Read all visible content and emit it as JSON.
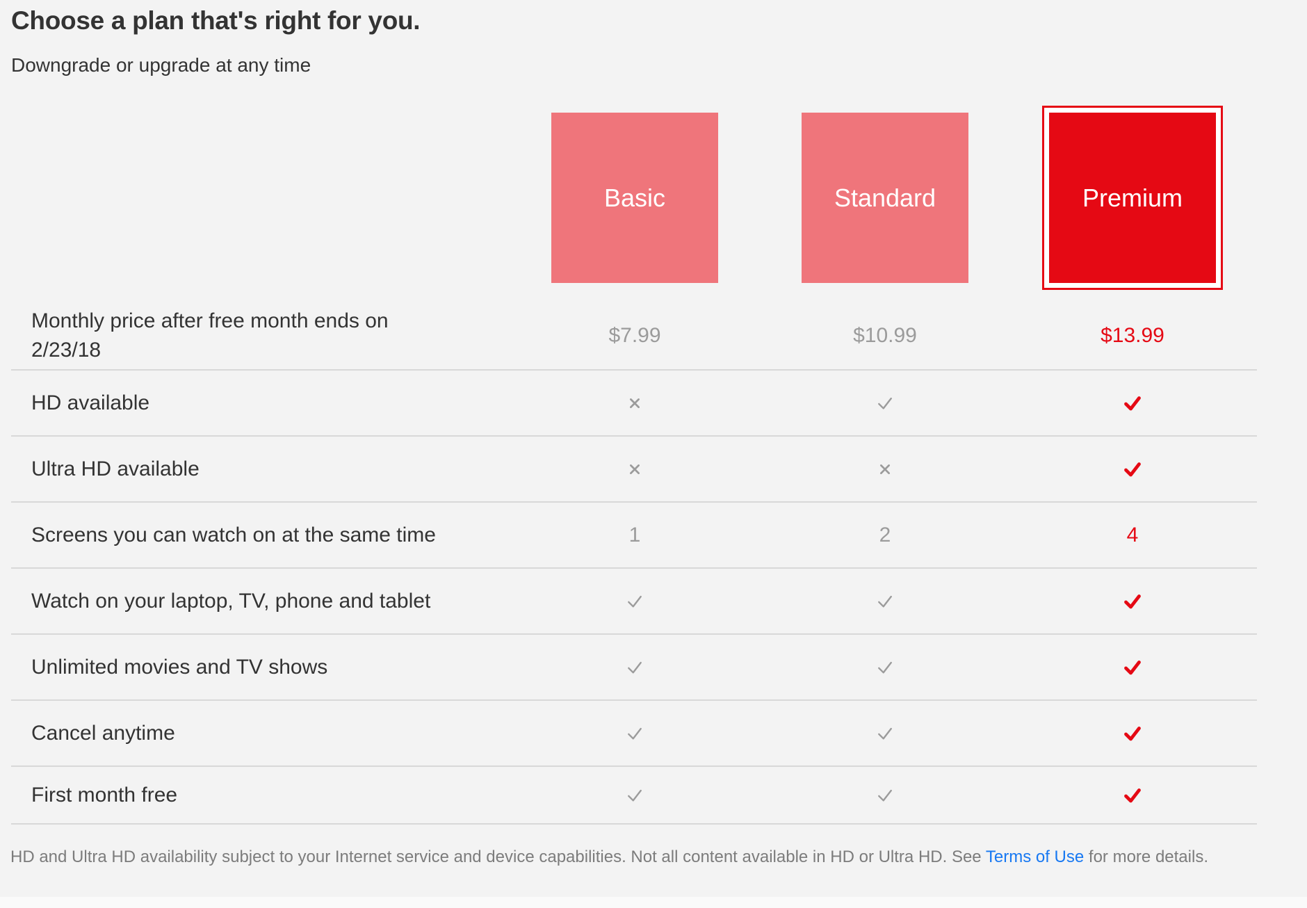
{
  "header": {
    "title": "Choose a plan that's right for you.",
    "subtitle": "Downgrade or upgrade at any time"
  },
  "plans": [
    {
      "name": "Basic",
      "selected": false
    },
    {
      "name": "Standard",
      "selected": false
    },
    {
      "name": "Premium",
      "selected": true
    }
  ],
  "table": {
    "rows": [
      {
        "label_lines": [
          "Monthly price after free month ends on",
          "2/23/18"
        ],
        "cells": [
          {
            "kind": "text",
            "value": "$7.99",
            "accent": false
          },
          {
            "kind": "text",
            "value": "$10.99",
            "accent": false
          },
          {
            "kind": "text",
            "value": "$13.99",
            "accent": true
          }
        ]
      },
      {
        "label_lines": [
          "HD available"
        ],
        "cells": [
          {
            "kind": "cross",
            "accent": false
          },
          {
            "kind": "check",
            "accent": false
          },
          {
            "kind": "check",
            "accent": true
          }
        ]
      },
      {
        "label_lines": [
          "Ultra HD available"
        ],
        "cells": [
          {
            "kind": "cross",
            "accent": false
          },
          {
            "kind": "cross",
            "accent": false
          },
          {
            "kind": "check",
            "accent": true
          }
        ]
      },
      {
        "label_lines": [
          "Screens you can watch on at the same time"
        ],
        "cells": [
          {
            "kind": "text",
            "value": "1",
            "accent": false
          },
          {
            "kind": "text",
            "value": "2",
            "accent": false
          },
          {
            "kind": "text",
            "value": "4",
            "accent": true
          }
        ]
      },
      {
        "label_lines": [
          "Watch on your laptop, TV, phone and tablet"
        ],
        "cells": [
          {
            "kind": "check",
            "accent": false
          },
          {
            "kind": "check",
            "accent": false
          },
          {
            "kind": "check",
            "accent": true
          }
        ]
      },
      {
        "label_lines": [
          "Unlimited movies and TV shows"
        ],
        "cells": [
          {
            "kind": "check",
            "accent": false
          },
          {
            "kind": "check",
            "accent": false
          },
          {
            "kind": "check",
            "accent": true
          }
        ]
      },
      {
        "label_lines": [
          "Cancel anytime"
        ],
        "cells": [
          {
            "kind": "check",
            "accent": false
          },
          {
            "kind": "check",
            "accent": false
          },
          {
            "kind": "check",
            "accent": true
          }
        ]
      },
      {
        "label_lines": [
          "First month free"
        ],
        "cells": [
          {
            "kind": "check",
            "accent": false
          },
          {
            "kind": "check",
            "accent": false
          },
          {
            "kind": "check",
            "accent": true
          }
        ]
      }
    ]
  },
  "footer": {
    "text_before": "HD and Ultra HD availability subject to your Internet service and device capabilities. Not all content available in HD or Ultra HD. See ",
    "link_label": "Terms of Use",
    "text_after": " for more details."
  },
  "icons": {
    "check": "check-icon",
    "cross": "cross-icon"
  },
  "colors": {
    "brand_red": "#e50914",
    "salmon": "#ef757b",
    "link_blue": "#1778f2",
    "muted_gray": "#9b9b9b",
    "text_dark": "#333333",
    "footer_gray": "#7c7c7c",
    "divider_gray": "#d8d8d8",
    "page_bg": "#f3f3f3"
  }
}
